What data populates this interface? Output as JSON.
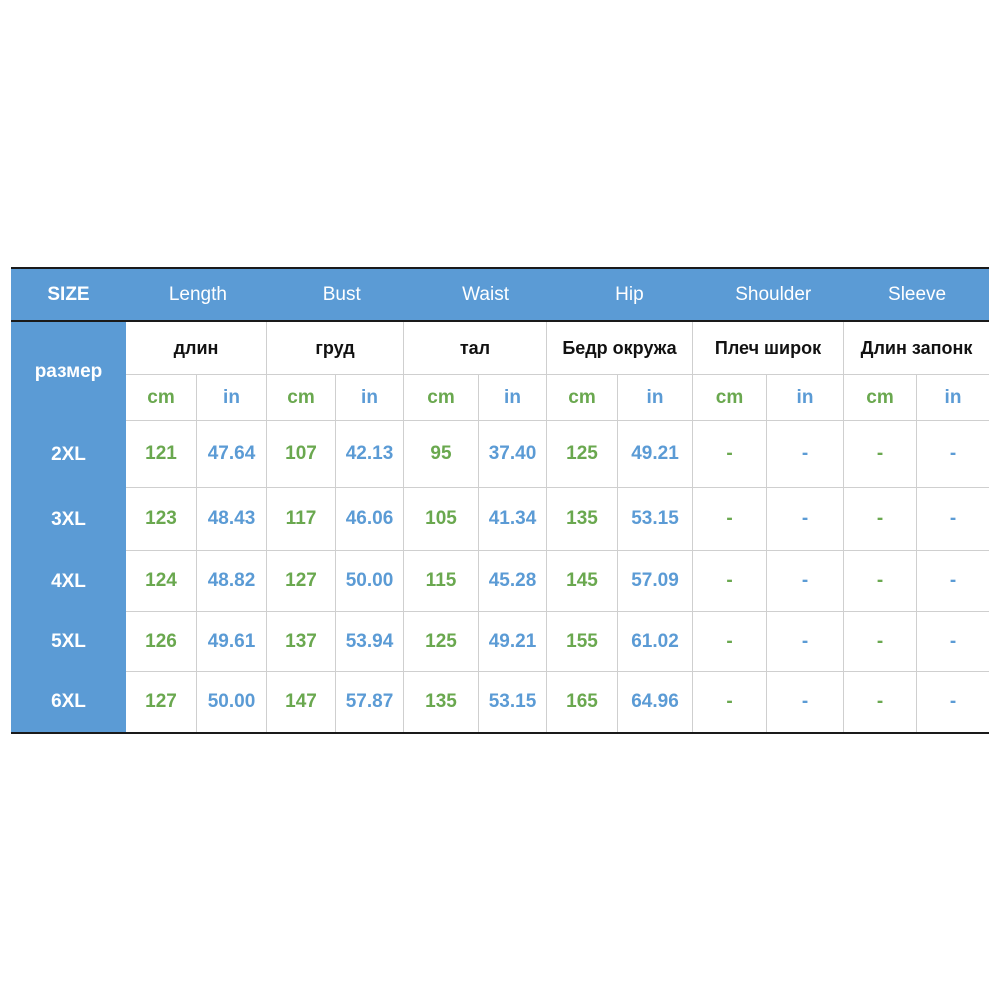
{
  "table": {
    "header": {
      "size": "SIZE",
      "columns": [
        "Length",
        "Bust",
        "Waist",
        "Hip",
        "Shoulder",
        "Sleeve"
      ]
    },
    "russian_label": "размер",
    "russian_headers": [
      "длин",
      "груд",
      "тал",
      "Бедр окружа",
      "Плеч широк",
      "Длин запонк"
    ],
    "unit_cm": "cm",
    "unit_in": "in",
    "rows": [
      {
        "size": "2XL",
        "values": [
          "121",
          "47.64",
          "107",
          "42.13",
          "95",
          "37.40",
          "125",
          "49.21",
          "-",
          "-",
          "-",
          "-"
        ]
      },
      {
        "size": "3XL",
        "values": [
          "123",
          "48.43",
          "117",
          "46.06",
          "105",
          "41.34",
          "135",
          "53.15",
          "-",
          "-",
          "-",
          "-"
        ]
      },
      {
        "size": "4XL",
        "values": [
          "124",
          "48.82",
          "127",
          "50.00",
          "115",
          "45.28",
          "145",
          "57.09",
          "-",
          "-",
          "-",
          "-"
        ]
      },
      {
        "size": "5XL",
        "values": [
          "126",
          "49.61",
          "137",
          "53.94",
          "125",
          "49.21",
          "155",
          "61.02",
          "-",
          "-",
          "-",
          "-"
        ]
      },
      {
        "size": "6XL",
        "values": [
          "127",
          "50.00",
          "147",
          "57.87",
          "135",
          "53.15",
          "165",
          "64.96",
          "-",
          "-",
          "-",
          "-"
        ]
      }
    ],
    "colors": {
      "header_bg": "#5b9bd5",
      "cm_text": "#6aa84f",
      "in_text": "#5b9bd5",
      "grid": "#cfcfcf"
    }
  }
}
